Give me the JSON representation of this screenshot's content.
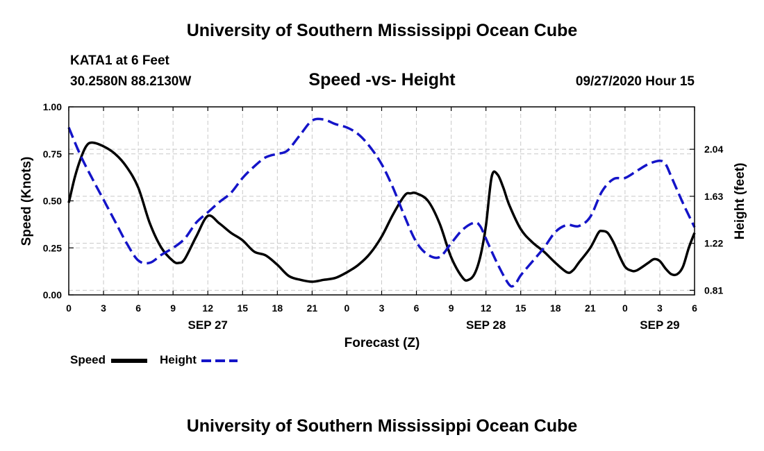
{
  "header": {
    "title": "University of Southern Mississippi Ocean Cube",
    "station": "KATA1 at 6 Feet",
    "coords": "30.2580N 88.2130W",
    "datetime": "09/27/2020 Hour 15"
  },
  "footer": {
    "title": "University of Southern Mississippi Ocean Cube"
  },
  "legend": {
    "speed_label": "Speed",
    "height_label": "Height"
  },
  "chart_data": {
    "type": "line",
    "title": "Speed -vs- Height",
    "xlabel": "Forecast (Z)",
    "ylabel_left": "Speed (Knots)",
    "ylabel_right": "Height (feet)",
    "x_range": [
      0,
      54
    ],
    "ylim_left": [
      0,
      1.0
    ],
    "ylim_right": [
      0.77,
      2.41
    ],
    "x_ticks": [
      {
        "x": 0,
        "label": "0"
      },
      {
        "x": 3,
        "label": "3"
      },
      {
        "x": 6,
        "label": "6"
      },
      {
        "x": 9,
        "label": "9"
      },
      {
        "x": 12,
        "label": "12"
      },
      {
        "x": 15,
        "label": "15"
      },
      {
        "x": 18,
        "label": "18"
      },
      {
        "x": 21,
        "label": "21"
      },
      {
        "x": 24,
        "label": "0"
      },
      {
        "x": 27,
        "label": "3"
      },
      {
        "x": 30,
        "label": "6"
      },
      {
        "x": 33,
        "label": "9"
      },
      {
        "x": 36,
        "label": "12"
      },
      {
        "x": 39,
        "label": "15"
      },
      {
        "x": 42,
        "label": "18"
      },
      {
        "x": 45,
        "label": "21"
      },
      {
        "x": 48,
        "label": "0"
      },
      {
        "x": 51,
        "label": "3"
      },
      {
        "x": 54,
        "label": "6"
      }
    ],
    "date_labels": [
      {
        "x": 12,
        "label": "SEP 27"
      },
      {
        "x": 36,
        "label": "SEP 28"
      },
      {
        "x": 51,
        "label": "SEP 29"
      }
    ],
    "left_ticks": [
      {
        "v": 0.0,
        "label": "0.00"
      },
      {
        "v": 0.25,
        "label": "0.25"
      },
      {
        "v": 0.5,
        "label": "0.50"
      },
      {
        "v": 0.75,
        "label": "0.75"
      },
      {
        "v": 1.0,
        "label": "1.00"
      }
    ],
    "right_ticks": [
      {
        "v": 0.81,
        "label": "0.81"
      },
      {
        "v": 1.22,
        "label": "1.22"
      },
      {
        "v": 1.63,
        "label": "1.63"
      },
      {
        "v": 2.04,
        "label": "2.04"
      }
    ],
    "series": [
      {
        "name": "Speed",
        "axis": "left",
        "color": "#000000",
        "dash": "solid",
        "points": [
          [
            0,
            0.49
          ],
          [
            0.5,
            0.62
          ],
          [
            1,
            0.72
          ],
          [
            1.5,
            0.79
          ],
          [
            2,
            0.81
          ],
          [
            3,
            0.79
          ],
          [
            4,
            0.75
          ],
          [
            5,
            0.68
          ],
          [
            6,
            0.57
          ],
          [
            7,
            0.38
          ],
          [
            8,
            0.25
          ],
          [
            9,
            0.18
          ],
          [
            9.5,
            0.17
          ],
          [
            10,
            0.19
          ],
          [
            11,
            0.31
          ],
          [
            12,
            0.42
          ],
          [
            13,
            0.38
          ],
          [
            14,
            0.33
          ],
          [
            15,
            0.29
          ],
          [
            16,
            0.23
          ],
          [
            17,
            0.21
          ],
          [
            18,
            0.16
          ],
          [
            19,
            0.1
          ],
          [
            20,
            0.08
          ],
          [
            21,
            0.07
          ],
          [
            22,
            0.08
          ],
          [
            23,
            0.09
          ],
          [
            24,
            0.12
          ],
          [
            25,
            0.16
          ],
          [
            26,
            0.22
          ],
          [
            27,
            0.31
          ],
          [
            28,
            0.43
          ],
          [
            29,
            0.53
          ],
          [
            29.5,
            0.54
          ],
          [
            30,
            0.54
          ],
          [
            31,
            0.5
          ],
          [
            32,
            0.38
          ],
          [
            33,
            0.2
          ],
          [
            34,
            0.09
          ],
          [
            34.5,
            0.08
          ],
          [
            35,
            0.11
          ],
          [
            35.5,
            0.2
          ],
          [
            36,
            0.37
          ],
          [
            36.5,
            0.63
          ],
          [
            37,
            0.64
          ],
          [
            37.5,
            0.57
          ],
          [
            38,
            0.48
          ],
          [
            39,
            0.35
          ],
          [
            40,
            0.28
          ],
          [
            41,
            0.23
          ],
          [
            42,
            0.17
          ],
          [
            43,
            0.12
          ],
          [
            43.5,
            0.13
          ],
          [
            44,
            0.17
          ],
          [
            45,
            0.25
          ],
          [
            45.7,
            0.33
          ],
          [
            46,
            0.34
          ],
          [
            46.5,
            0.33
          ],
          [
            47,
            0.28
          ],
          [
            47.5,
            0.21
          ],
          [
            48,
            0.15
          ],
          [
            48.5,
            0.13
          ],
          [
            49,
            0.13
          ],
          [
            50,
            0.17
          ],
          [
            50.5,
            0.19
          ],
          [
            51,
            0.18
          ],
          [
            51.5,
            0.14
          ],
          [
            52,
            0.11
          ],
          [
            52.5,
            0.11
          ],
          [
            53,
            0.15
          ],
          [
            53.5,
            0.25
          ],
          [
            54,
            0.33
          ]
        ]
      },
      {
        "name": "Height",
        "axis": "right",
        "color": "#1414c8",
        "dash": "dashed",
        "points": [
          [
            0,
            2.23
          ],
          [
            1,
            1.99
          ],
          [
            2,
            1.79
          ],
          [
            3,
            1.6
          ],
          [
            4,
            1.41
          ],
          [
            5,
            1.22
          ],
          [
            6,
            1.07
          ],
          [
            7,
            1.05
          ],
          [
            8,
            1.12
          ],
          [
            9,
            1.18
          ],
          [
            10,
            1.26
          ],
          [
            11,
            1.4
          ],
          [
            12,
            1.49
          ],
          [
            13,
            1.58
          ],
          [
            14,
            1.66
          ],
          [
            15,
            1.79
          ],
          [
            16,
            1.89
          ],
          [
            17,
            1.97
          ],
          [
            18,
            2.0
          ],
          [
            18.5,
            2.01
          ],
          [
            19,
            2.04
          ],
          [
            20,
            2.17
          ],
          [
            21,
            2.29
          ],
          [
            22,
            2.3
          ],
          [
            23,
            2.26
          ],
          [
            24,
            2.23
          ],
          [
            25,
            2.17
          ],
          [
            26,
            2.06
          ],
          [
            27,
            1.91
          ],
          [
            28,
            1.7
          ],
          [
            29,
            1.45
          ],
          [
            30,
            1.23
          ],
          [
            31,
            1.12
          ],
          [
            32,
            1.1
          ],
          [
            33,
            1.22
          ],
          [
            34,
            1.34
          ],
          [
            35,
            1.4
          ],
          [
            35.5,
            1.37
          ],
          [
            36,
            1.26
          ],
          [
            37,
            1.04
          ],
          [
            38,
            0.86
          ],
          [
            38.5,
            0.86
          ],
          [
            39,
            0.94
          ],
          [
            40,
            1.06
          ],
          [
            41,
            1.18
          ],
          [
            42,
            1.32
          ],
          [
            43,
            1.38
          ],
          [
            44,
            1.37
          ],
          [
            45,
            1.45
          ],
          [
            46,
            1.67
          ],
          [
            47,
            1.78
          ],
          [
            48,
            1.79
          ],
          [
            49,
            1.85
          ],
          [
            50,
            1.91
          ],
          [
            51,
            1.94
          ],
          [
            51.5,
            1.91
          ],
          [
            52,
            1.8
          ],
          [
            53,
            1.57
          ],
          [
            54,
            1.36
          ]
        ]
      }
    ]
  }
}
